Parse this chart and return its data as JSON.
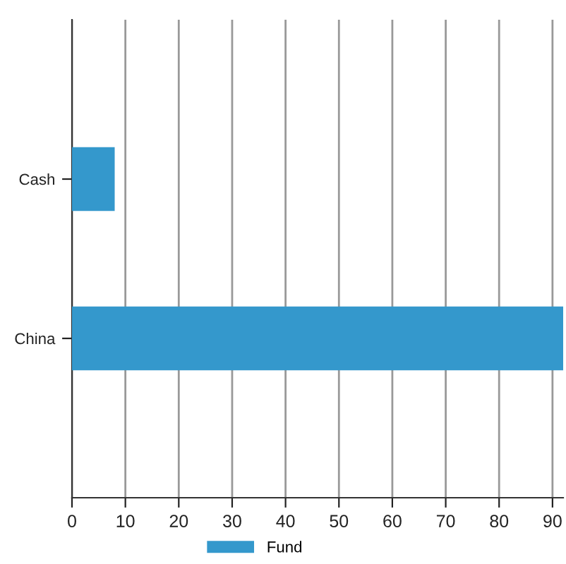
{
  "chart_data": {
    "type": "bar",
    "orientation": "horizontal",
    "categories": [
      "Cash",
      "China"
    ],
    "series": [
      {
        "name": "Fund",
        "color": "#3498cc",
        "values": [
          8,
          92
        ]
      }
    ],
    "xlim": [
      0,
      92
    ],
    "xticks": [
      0,
      10,
      20,
      30,
      40,
      50,
      60,
      70,
      80,
      90
    ],
    "grid": "x",
    "legend": "bottom"
  }
}
